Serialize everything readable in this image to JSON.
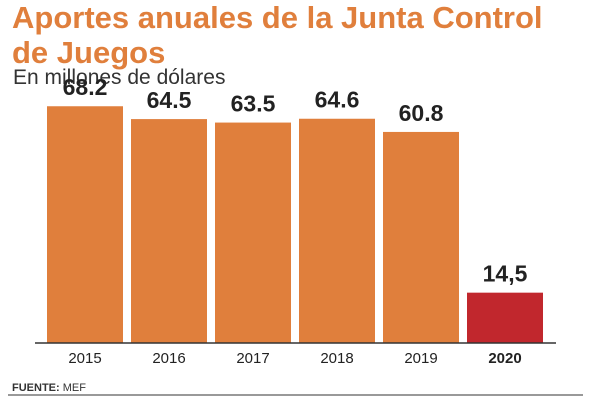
{
  "header": {
    "title": "Aportes anuales de la Junta Control de Juegos",
    "subtitle": "En millones de dólares"
  },
  "footer": {
    "source_label": "FUENTE:",
    "source_value": "MEF"
  },
  "colors": {
    "bar": "#e07f3c",
    "highlight": "#c1272d",
    "title": "#e07f3c",
    "text": "#222222",
    "axis": "#333333"
  },
  "chart_data": {
    "type": "bar",
    "categories": [
      "2015",
      "2016",
      "2017",
      "2018",
      "2019",
      "2020"
    ],
    "values": [
      68.2,
      64.5,
      63.5,
      64.6,
      60.8,
      14.5
    ],
    "value_labels": [
      "68.2",
      "64.5",
      "63.5",
      "64.6",
      "60.8",
      "14,5"
    ],
    "highlight_index": 5,
    "title": "Aportes anuales de la Junta Control de Juegos",
    "subtitle": "En millones de dólares",
    "xlabel": "",
    "ylabel": "",
    "ylim": [
      0,
      70
    ],
    "grid": false,
    "legend": "none"
  }
}
